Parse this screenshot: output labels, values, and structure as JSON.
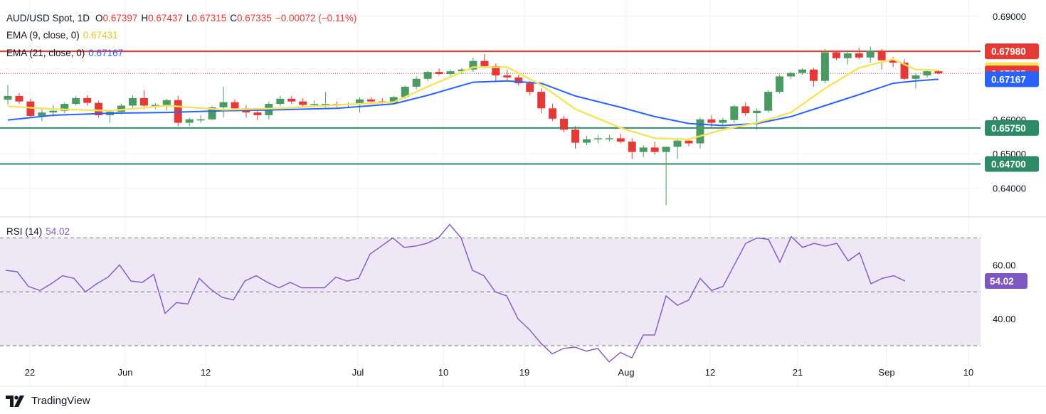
{
  "header": {
    "symbol": "AUD/USD Spot, 1D",
    "open_label": "O",
    "open": "0.67397",
    "high_label": "H",
    "high": "0.67437",
    "low_label": "L",
    "low": "0.67315",
    "close_label": "C",
    "close": "0.67335",
    "change": "−0.00072 (−0.11%)",
    "ema9_label": "EMA (9, close, 0)",
    "ema9_value": "0.67431",
    "ema21_label": "EMA (21, close, 0)",
    "ema21_value": "0.67167",
    "rsi_label": "RSI (14)",
    "rsi_value": "54.02"
  },
  "brand": "TradingView",
  "colors": {
    "up": "#4c9a63",
    "down": "#e53935",
    "ema9": "#f5e35a",
    "ema21": "#2962ff",
    "resistance": "#e53935",
    "support": "#2e8b67",
    "rsi": "#7e57c2",
    "rsi_band": "#ede7f6"
  },
  "chart_data": {
    "type": "candlestick",
    "price_axis": {
      "ticks": [
        "0.69000",
        "0.66000",
        "0.65000",
        "0.64000"
      ],
      "ylim": [
        0.632,
        0.6935
      ]
    },
    "x_ticks": [
      "22",
      "Jun",
      "12",
      "Jul",
      "10",
      "19",
      "Aug",
      "12",
      "21",
      "Sep",
      "10"
    ],
    "price_labels": [
      {
        "text": "0.67980",
        "value": 0.6798,
        "color": "#e53935",
        "text_color": "#ffffff"
      },
      {
        "text": "0.67431",
        "value": 0.67431,
        "color": "#f5e35a",
        "text_color": "#131722"
      },
      {
        "text": "0.67335",
        "value": 0.67335,
        "color": "#e53935",
        "text_color": "#ffffff"
      },
      {
        "text": "0.67167",
        "value": 0.67167,
        "color": "#2962ff",
        "text_color": "#ffffff"
      },
      {
        "text": "0.65750",
        "value": 0.6575,
        "color": "#2e8b67",
        "text_color": "#ffffff"
      },
      {
        "text": "0.64700",
        "value": 0.647,
        "color": "#2e8b67",
        "text_color": "#ffffff"
      }
    ],
    "horizontal_lines": [
      {
        "value": 0.6798,
        "color": "#e53935"
      },
      {
        "value": 0.6575,
        "color": "#2e8b67"
      },
      {
        "value": 0.647,
        "color": "#2e8b67"
      }
    ],
    "last_price_line": 0.67335,
    "candles": [
      [
        0.6657,
        0.67,
        0.6643,
        0.6668
      ],
      [
        0.6668,
        0.6676,
        0.6645,
        0.6652
      ],
      [
        0.6652,
        0.666,
        0.6605,
        0.661
      ],
      [
        0.661,
        0.6632,
        0.6595,
        0.662
      ],
      [
        0.662,
        0.6642,
        0.6608,
        0.6625
      ],
      [
        0.6625,
        0.665,
        0.6618,
        0.6645
      ],
      [
        0.6645,
        0.6668,
        0.664,
        0.6662
      ],
      [
        0.6662,
        0.667,
        0.664,
        0.6648
      ],
      [
        0.6648,
        0.6655,
        0.6605,
        0.6612
      ],
      [
        0.6612,
        0.6628,
        0.659,
        0.6622
      ],
      [
        0.6622,
        0.6645,
        0.6615,
        0.664
      ],
      [
        0.664,
        0.667,
        0.6632,
        0.6662
      ],
      [
        0.6662,
        0.6685,
        0.663,
        0.664
      ],
      [
        0.664,
        0.6648,
        0.663,
        0.6642
      ],
      [
        0.6642,
        0.666,
        0.6626,
        0.6656
      ],
      [
        0.6656,
        0.6668,
        0.658,
        0.659
      ],
      [
        0.659,
        0.6605,
        0.658,
        0.66
      ],
      [
        0.66,
        0.6612,
        0.659,
        0.66
      ],
      [
        0.66,
        0.6638,
        0.6598,
        0.6635
      ],
      [
        0.6635,
        0.6695,
        0.6605,
        0.665
      ],
      [
        0.665,
        0.6658,
        0.6625,
        0.6632
      ],
      [
        0.6632,
        0.6642,
        0.6605,
        0.662
      ],
      [
        0.662,
        0.6628,
        0.6598,
        0.6612
      ],
      [
        0.6612,
        0.6652,
        0.66,
        0.6645
      ],
      [
        0.6645,
        0.6668,
        0.6638,
        0.666
      ],
      [
        0.666,
        0.6668,
        0.6645,
        0.6652
      ],
      [
        0.6652,
        0.6662,
        0.6636,
        0.6642
      ],
      [
        0.6642,
        0.6655,
        0.6635,
        0.6645
      ],
      [
        0.6645,
        0.668,
        0.6635,
        0.6645
      ],
      [
        0.6645,
        0.6652,
        0.6635,
        0.6642
      ],
      [
        0.6642,
        0.665,
        0.6632,
        0.6645
      ],
      [
        0.6645,
        0.6665,
        0.662,
        0.6658
      ],
      [
        0.6658,
        0.6665,
        0.6648,
        0.6652
      ],
      [
        0.6652,
        0.6662,
        0.664,
        0.6648
      ],
      [
        0.6648,
        0.6668,
        0.6645,
        0.6665
      ],
      [
        0.6665,
        0.6698,
        0.666,
        0.6695
      ],
      [
        0.6695,
        0.6725,
        0.6688,
        0.6718
      ],
      [
        0.6718,
        0.6742,
        0.6712,
        0.6738
      ],
      [
        0.6738,
        0.6748,
        0.6728,
        0.6732
      ],
      [
        0.6732,
        0.6745,
        0.6725,
        0.674
      ],
      [
        0.674,
        0.675,
        0.6732,
        0.6745
      ],
      [
        0.6745,
        0.678,
        0.6738,
        0.677
      ],
      [
        0.677,
        0.679,
        0.6752,
        0.6755
      ],
      [
        0.6755,
        0.6762,
        0.6712,
        0.6728
      ],
      [
        0.6728,
        0.6745,
        0.671,
        0.6722
      ],
      [
        0.6722,
        0.673,
        0.6698,
        0.6705
      ],
      [
        0.6705,
        0.6712,
        0.667,
        0.668
      ],
      [
        0.668,
        0.669,
        0.6618,
        0.6632
      ],
      [
        0.6632,
        0.6645,
        0.6595,
        0.6602
      ],
      [
        0.6602,
        0.661,
        0.6562,
        0.657
      ],
      [
        0.657,
        0.658,
        0.6515,
        0.6532
      ],
      [
        0.6532,
        0.6552,
        0.6525,
        0.6542
      ],
      [
        0.6542,
        0.6555,
        0.653,
        0.6545
      ],
      [
        0.6545,
        0.6555,
        0.6535,
        0.6545
      ],
      [
        0.6545,
        0.6558,
        0.653,
        0.6535
      ],
      [
        0.6535,
        0.6545,
        0.6485,
        0.6505
      ],
      [
        0.6505,
        0.6525,
        0.649,
        0.6518
      ],
      [
        0.6518,
        0.6535,
        0.6498,
        0.6505
      ],
      [
        0.6505,
        0.652,
        0.635,
        0.652
      ],
      [
        0.652,
        0.6545,
        0.6485,
        0.6538
      ],
      [
        0.6538,
        0.6545,
        0.6522,
        0.653
      ],
      [
        0.653,
        0.6605,
        0.6515,
        0.66
      ],
      [
        0.66,
        0.6612,
        0.6578,
        0.659
      ],
      [
        0.659,
        0.6605,
        0.658,
        0.6598
      ],
      [
        0.6598,
        0.6642,
        0.659,
        0.6638
      ],
      [
        0.6638,
        0.665,
        0.661,
        0.6618
      ],
      [
        0.6618,
        0.6632,
        0.657,
        0.6625
      ],
      [
        0.6625,
        0.6685,
        0.662,
        0.668
      ],
      [
        0.668,
        0.673,
        0.6675,
        0.6725
      ],
      [
        0.6725,
        0.6738,
        0.6718,
        0.6735
      ],
      [
        0.6735,
        0.6748,
        0.673,
        0.6745
      ],
      [
        0.6745,
        0.675,
        0.6695,
        0.6712
      ],
      [
        0.6712,
        0.6805,
        0.6705,
        0.6795
      ],
      [
        0.6795,
        0.68,
        0.6772,
        0.6778
      ],
      [
        0.6778,
        0.68,
        0.676,
        0.6792
      ],
      [
        0.6792,
        0.6808,
        0.6775,
        0.678
      ],
      [
        0.678,
        0.6812,
        0.6765,
        0.68
      ],
      [
        0.68,
        0.6805,
        0.6745,
        0.6772
      ],
      [
        0.6772,
        0.6782,
        0.6752,
        0.6765
      ],
      [
        0.6765,
        0.6775,
        0.6715,
        0.6718
      ],
      [
        0.6718,
        0.6735,
        0.669,
        0.6728
      ],
      [
        0.6728,
        0.6745,
        0.6722,
        0.674
      ],
      [
        0.674,
        0.6744,
        0.6731,
        0.6734
      ]
    ],
    "ema9": [
      [
        0,
        0.6638
      ],
      [
        4,
        0.663
      ],
      [
        9,
        0.6625
      ],
      [
        14,
        0.664
      ],
      [
        19,
        0.6628
      ],
      [
        24,
        0.6632
      ],
      [
        29,
        0.6642
      ],
      [
        34,
        0.665
      ],
      [
        37,
        0.6695
      ],
      [
        41,
        0.6752
      ],
      [
        44,
        0.6752
      ],
      [
        47,
        0.67
      ],
      [
        50,
        0.663
      ],
      [
        54,
        0.6575
      ],
      [
        57,
        0.6545
      ],
      [
        60,
        0.6542
      ],
      [
        63,
        0.657
      ],
      [
        66,
        0.659
      ],
      [
        69,
        0.662
      ],
      [
        72,
        0.669
      ],
      [
        75,
        0.675
      ],
      [
        78,
        0.6775
      ],
      [
        80,
        0.6745
      ],
      [
        82,
        0.67431
      ]
    ],
    "ema21": [
      [
        0,
        0.6598
      ],
      [
        4,
        0.6612
      ],
      [
        9,
        0.6618
      ],
      [
        14,
        0.662
      ],
      [
        19,
        0.6625
      ],
      [
        24,
        0.6628
      ],
      [
        29,
        0.6632
      ],
      [
        34,
        0.6645
      ],
      [
        37,
        0.667
      ],
      [
        41,
        0.6708
      ],
      [
        44,
        0.6712
      ],
      [
        47,
        0.6705
      ],
      [
        50,
        0.6668
      ],
      [
        54,
        0.6635
      ],
      [
        57,
        0.6608
      ],
      [
        60,
        0.6588
      ],
      [
        63,
        0.6582
      ],
      [
        66,
        0.6588
      ],
      [
        69,
        0.6608
      ],
      [
        72,
        0.664
      ],
      [
        75,
        0.6672
      ],
      [
        78,
        0.6705
      ],
      [
        80,
        0.6712
      ],
      [
        82,
        0.67167
      ]
    ],
    "rsi": {
      "ticks": [
        "60.00",
        "40.00"
      ],
      "ylim": [
        25,
        77
      ],
      "levels": [
        70,
        50,
        30
      ],
      "values": [
        [
          0,
          58
        ],
        [
          1,
          57.5
        ],
        [
          2,
          52
        ],
        [
          3,
          50.5
        ],
        [
          4,
          53
        ],
        [
          5,
          56
        ],
        [
          6,
          55
        ],
        [
          7,
          50
        ],
        [
          8,
          53
        ],
        [
          9,
          55.5
        ],
        [
          10,
          60
        ],
        [
          11,
          54
        ],
        [
          12,
          53.5
        ],
        [
          13,
          56.5
        ],
        [
          14,
          42
        ],
        [
          15,
          46
        ],
        [
          16,
          45.5
        ],
        [
          17,
          55
        ],
        [
          18,
          51
        ],
        [
          19,
          48
        ],
        [
          20,
          47
        ],
        [
          21,
          54
        ],
        [
          22,
          56
        ],
        [
          23,
          53.5
        ],
        [
          24,
          51.5
        ],
        [
          25,
          53.5
        ],
        [
          26,
          51.5
        ],
        [
          27,
          51.5
        ],
        [
          28,
          51.5
        ],
        [
          29,
          55.5
        ],
        [
          30,
          54
        ],
        [
          31,
          55
        ],
        [
          32,
          64
        ],
        [
          33,
          67
        ],
        [
          34,
          70
        ],
        [
          35,
          66.5
        ],
        [
          36,
          67
        ],
        [
          37,
          68
        ],
        [
          38,
          70
        ],
        [
          39,
          75
        ],
        [
          40,
          70
        ],
        [
          41,
          58
        ],
        [
          42,
          56
        ],
        [
          43,
          50
        ],
        [
          44,
          48.5
        ],
        [
          45,
          40
        ],
        [
          46,
          36
        ],
        [
          47,
          31
        ],
        [
          48,
          27
        ],
        [
          49,
          29
        ],
        [
          50,
          29.5
        ],
        [
          51,
          28
        ],
        [
          52,
          29
        ],
        [
          53,
          24
        ],
        [
          54,
          27.5
        ],
        [
          55,
          25.5
        ],
        [
          56,
          34
        ],
        [
          57,
          34
        ],
        [
          58,
          48.5
        ],
        [
          59,
          45
        ],
        [
          60,
          47
        ],
        [
          61,
          55
        ],
        [
          62,
          50.5
        ],
        [
          63,
          52
        ],
        [
          64,
          60
        ],
        [
          65,
          68
        ],
        [
          66,
          70
        ],
        [
          67,
          69.5
        ],
        [
          68,
          61
        ],
        [
          69,
          70.5
        ],
        [
          70,
          66.5
        ],
        [
          71,
          68
        ],
        [
          72,
          67
        ],
        [
          73,
          68
        ],
        [
          74,
          61.5
        ],
        [
          75,
          64.5
        ],
        [
          76,
          53
        ],
        [
          77,
          55
        ],
        [
          78,
          56
        ],
        [
          79,
          54.02
        ]
      ]
    }
  }
}
